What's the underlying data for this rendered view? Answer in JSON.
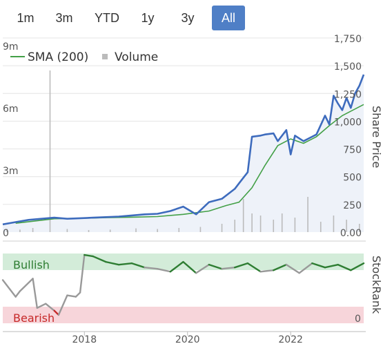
{
  "range_selector": {
    "buttons": [
      "1m",
      "3m",
      "YTD",
      "1y",
      "3y",
      "All"
    ],
    "active": "All"
  },
  "legend": {
    "sma_label": "SMA (200)",
    "volume_label": "Volume"
  },
  "colors": {
    "price": "#3d6bbd",
    "sma": "#43a047",
    "volume": "#bbbbbb",
    "area": "#eef2f9",
    "bullish_band": "#d3ecd9",
    "bearish_band": "#f7d5da",
    "bullish_text": "#2e7d32",
    "bearish_text": "#c62828",
    "stockrank_neutral": "#999999",
    "active_button": "#4f7fc6"
  },
  "chart_data": [
    {
      "type": "line",
      "ylabel": "Share Price",
      "ylim": [
        0,
        1750
      ],
      "yticks": [
        "0.00",
        "250",
        "500",
        "750",
        "1,000",
        "1,250",
        "1,500",
        "1,750"
      ],
      "xlim": [
        "2016-06",
        "2023-06"
      ],
      "xticks": [
        "2018",
        "2020",
        "2022"
      ],
      "legend_placement": "top-left",
      "grid": true,
      "series": [
        {
          "name": "Price",
          "x": [
            "2016-06",
            "2016-09",
            "2016-12",
            "2017-03",
            "2017-06",
            "2017-09",
            "2017-12",
            "2018-03",
            "2018-06",
            "2018-09",
            "2018-12",
            "2019-03",
            "2019-06",
            "2019-09",
            "2019-12",
            "2020-03",
            "2020-06",
            "2020-09",
            "2020-12",
            "2021-01",
            "2021-03",
            "2021-04",
            "2021-06",
            "2021-07",
            "2021-09",
            "2021-10",
            "2021-12",
            "2022-01",
            "2022-02",
            "2022-04",
            "2022-06",
            "2022-07",
            "2022-09",
            "2022-10",
            "2022-11",
            "2022-12",
            "2023-01",
            "2023-02",
            "2023-03",
            "2023-04",
            "2023-05",
            "2023-06"
          ],
          "values": [
            70,
            90,
            110,
            120,
            130,
            120,
            125,
            130,
            135,
            140,
            150,
            160,
            165,
            190,
            230,
            160,
            270,
            300,
            390,
            440,
            540,
            860,
            870,
            880,
            890,
            820,
            920,
            700,
            870,
            820,
            860,
            880,
            1050,
            970,
            1230,
            1160,
            1100,
            1210,
            1120,
            1250,
            1320,
            1420
          ]
        },
        {
          "name": "SMA (200)",
          "x": [
            "2016-09",
            "2017-06",
            "2018-01",
            "2018-06",
            "2019-01",
            "2019-06",
            "2019-12",
            "2020-06",
            "2020-10",
            "2021-01",
            "2021-04",
            "2021-07",
            "2021-10",
            "2022-01",
            "2022-04",
            "2022-07",
            "2022-10",
            "2023-01",
            "2023-06"
          ],
          "values": [
            80,
            120,
            125,
            130,
            135,
            140,
            160,
            190,
            240,
            270,
            400,
            600,
            780,
            840,
            800,
            860,
            960,
            1050,
            1150
          ]
        },
        {
          "name": "Volume",
          "axis_ticks": [
            "0",
            "3m",
            "6m",
            "9m"
          ],
          "ylim": [
            0,
            12000000
          ],
          "x": [
            "2016-07",
            "2016-10",
            "2017-01",
            "2017-05",
            "2017-09",
            "2018-02",
            "2018-07",
            "2019-01",
            "2019-06",
            "2019-11",
            "2020-04",
            "2020-09",
            "2020-12",
            "2021-02",
            "2021-04",
            "2021-06",
            "2021-09",
            "2021-11",
            "2022-02",
            "2022-05",
            "2022-08",
            "2022-11",
            "2023-02",
            "2023-05"
          ],
          "values": [
            150000,
            120000,
            200000,
            7800000,
            150000,
            100000,
            120000,
            180000,
            150000,
            200000,
            250000,
            400000,
            600000,
            1600000,
            900000,
            800000,
            600000,
            900000,
            700000,
            1700000,
            500000,
            800000,
            600000,
            400000
          ]
        }
      ]
    },
    {
      "type": "line",
      "ylabel": "StockRank",
      "yticks": [
        "0"
      ],
      "ylim": [
        0,
        100
      ],
      "bands": [
        {
          "label": "Bullish",
          "from": 80,
          "to": 100
        },
        {
          "label": "Bearish",
          "from": 0,
          "to": 20
        }
      ],
      "series": [
        {
          "name": "StockRank",
          "x": [
            "2016-06",
            "2016-09",
            "2016-10",
            "2017-01",
            "2017-02",
            "2017-04",
            "2017-06",
            "2017-07",
            "2017-09",
            "2017-11",
            "2017-12",
            "2018-01",
            "2018-03",
            "2018-06",
            "2018-09",
            "2018-12",
            "2019-03",
            "2019-06",
            "2019-09",
            "2019-12",
            "2020-03",
            "2020-06",
            "2020-09",
            "2020-12",
            "2021-03",
            "2021-06",
            "2021-09",
            "2021-12",
            "2022-03",
            "2022-06",
            "2022-09",
            "2022-12",
            "2023-03",
            "2023-06"
          ],
          "values": [
            62,
            38,
            46,
            64,
            22,
            28,
            18,
            12,
            40,
            38,
            44,
            98,
            96,
            88,
            84,
            86,
            80,
            78,
            74,
            88,
            72,
            84,
            78,
            80,
            86,
            74,
            76,
            84,
            72,
            86,
            80,
            84,
            76,
            86
          ]
        }
      ]
    }
  ]
}
